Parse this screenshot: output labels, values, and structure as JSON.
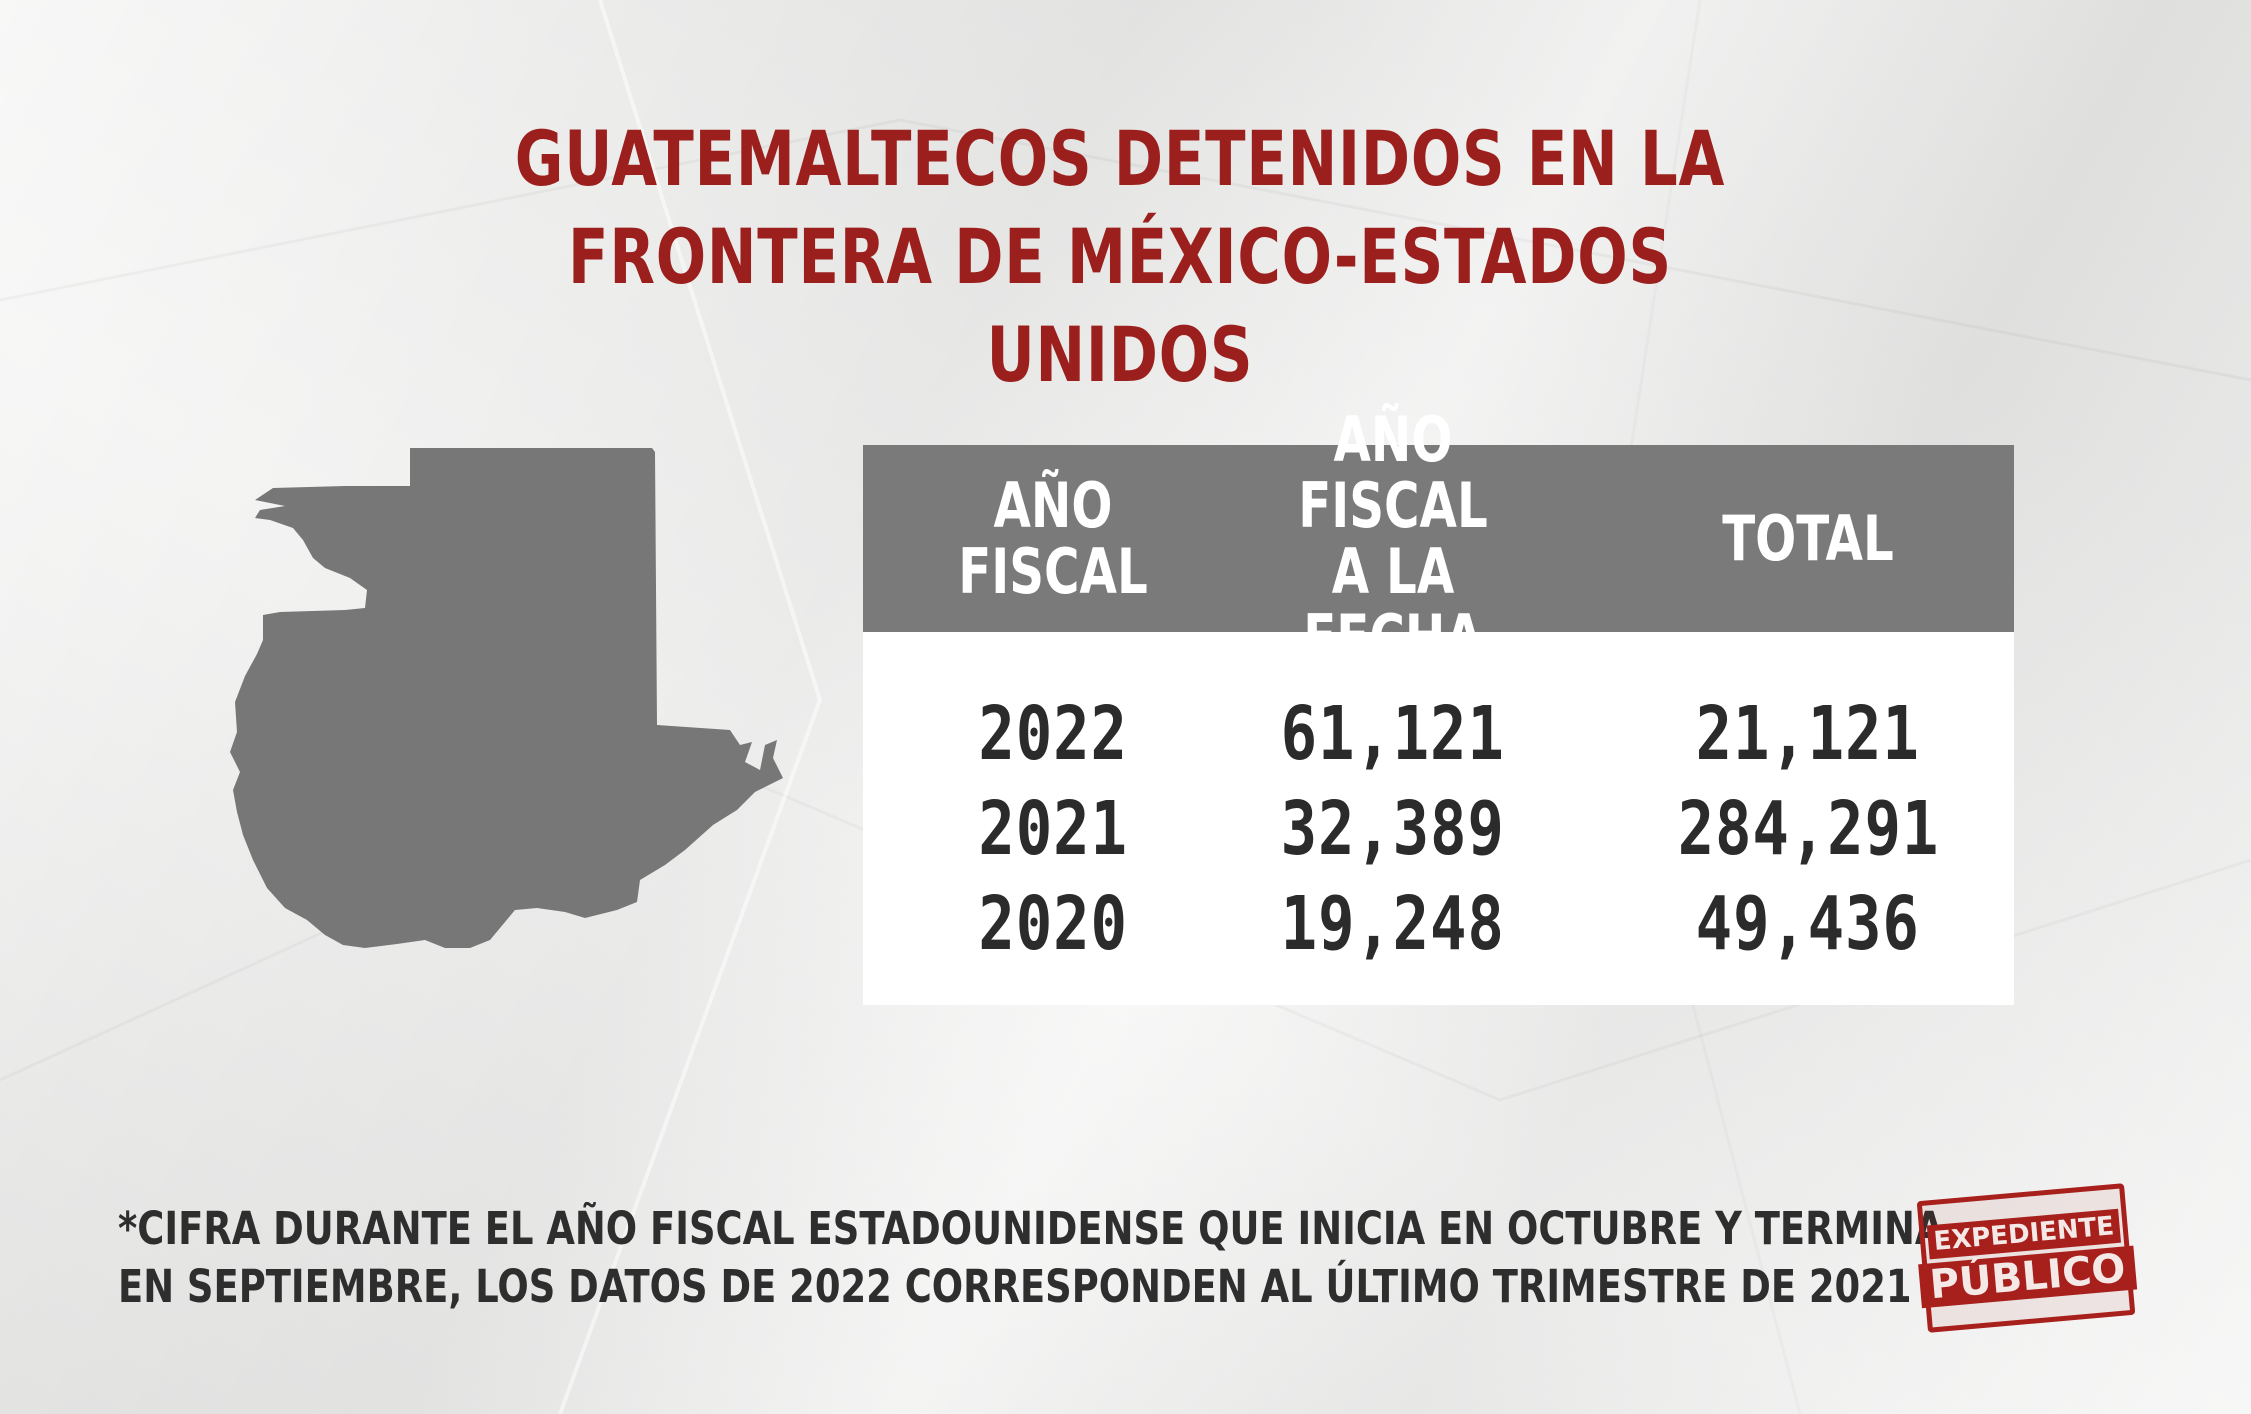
{
  "title": {
    "line1": "GUATEMALTECOS DETENIDOS EN LA",
    "line2": "FRONTERA DE MÉXICO-ESTADOS UNIDOS"
  },
  "colors": {
    "title": "#9b1f1c",
    "header_bg": "#7a7a7a",
    "map_fill": "#777777",
    "text": "#2b2b2b",
    "logo": "#a8201c"
  },
  "chart_data": {
    "type": "table",
    "columns": [
      "AÑO FISCAL",
      "AÑO FISCAL\nA LA FECHA",
      "TOTAL"
    ],
    "rows": [
      [
        "2022",
        "61,121",
        "21,121"
      ],
      [
        "2021",
        "32,389",
        "284,291"
      ],
      [
        "2020",
        "19,248",
        "49,436"
      ]
    ]
  },
  "footnote": {
    "line1": "*CIFRA DURANTE EL AÑO FISCAL ESTADOUNIDENSE QUE INICIA EN OCTUBRE Y TERMINA",
    "line2": "EN SEPTIEMBRE, LOS DATOS DE 2022 CORRESPONDEN AL ÚLTIMO TRIMESTRE DE 2021"
  },
  "logo": {
    "line1": "EXPEDIENTE",
    "line2": "PÚBLICO"
  },
  "icons": {
    "map": "guatemala-map-icon"
  }
}
